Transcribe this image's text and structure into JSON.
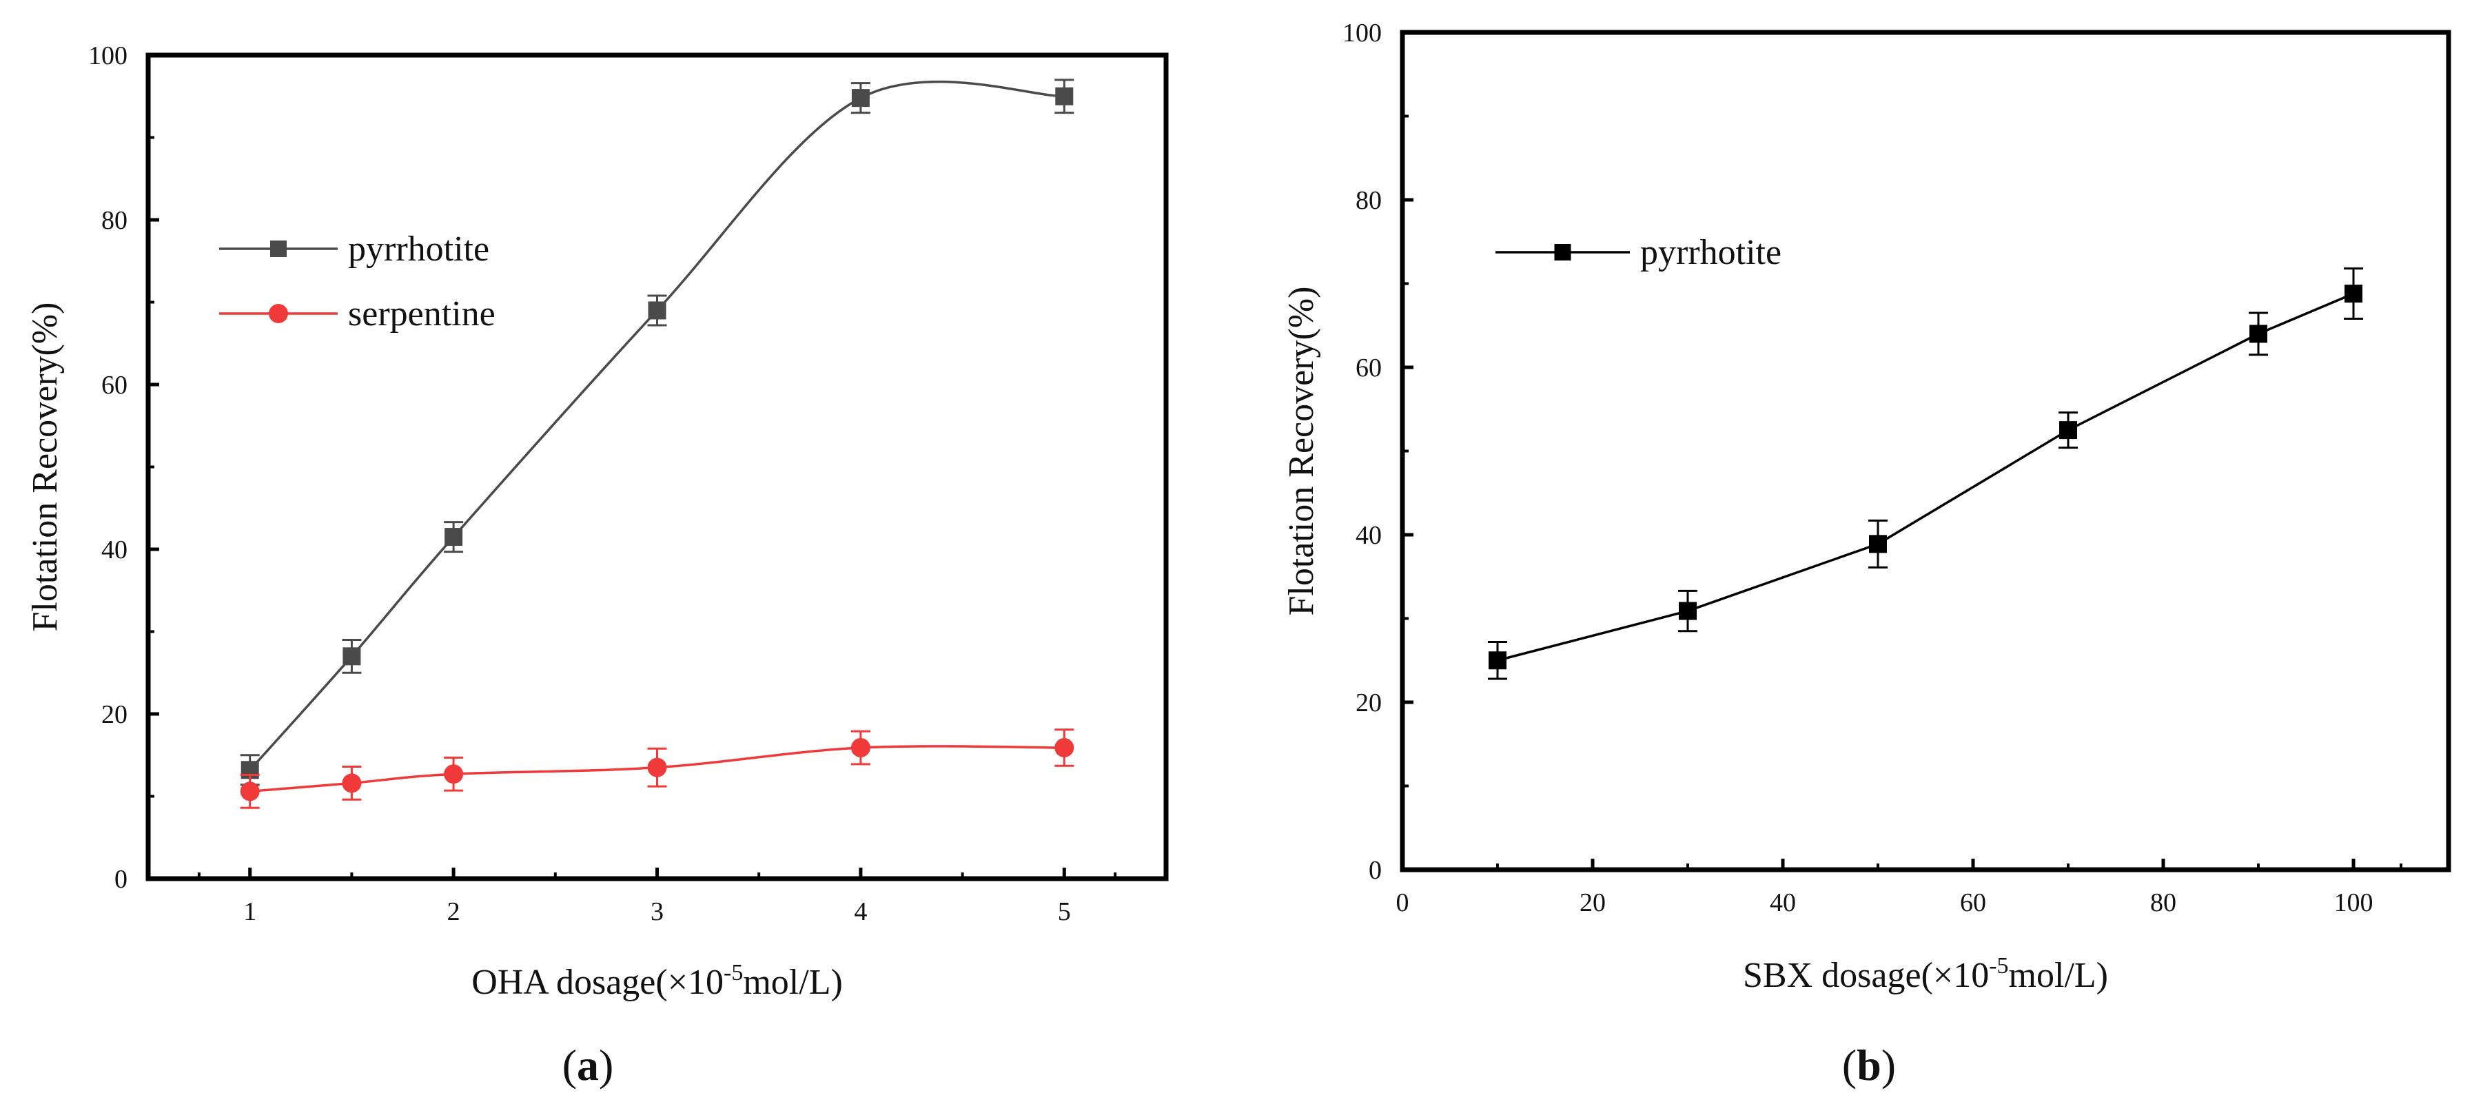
{
  "chart_data": [
    {
      "type": "line",
      "panel_label_open": "(",
      "panel_label_letter": "a",
      "panel_label_close": ")",
      "xlabel": "OHA dosage(×10",
      "xlabel_sup": "-5",
      "xlabel_tail": "mol/L)",
      "ylabel": "Flotation Recovery(%)",
      "xlim": [
        0.5,
        5.5
      ],
      "ylim": [
        0,
        100
      ],
      "xticks": [
        1,
        2,
        3,
        4,
        5
      ],
      "yticks": [
        0,
        20,
        40,
        60,
        80,
        100
      ],
      "grid": false,
      "legend_position": "upper-left",
      "x": [
        1,
        1.5,
        2,
        3,
        4,
        5
      ],
      "series": [
        {
          "name": "pyrrhotite",
          "marker": "square",
          "color": "#4a4a4a",
          "values": [
            13.2,
            27.0,
            41.5,
            69.0,
            94.8,
            95.0
          ],
          "errors": [
            1.8,
            2.0,
            1.8,
            1.8,
            1.8,
            2.0
          ],
          "smooth": true
        },
        {
          "name": "serpentine",
          "marker": "circle",
          "color": "#f03a3a",
          "values": [
            10.6,
            11.6,
            12.7,
            13.5,
            15.9,
            15.9
          ],
          "errors": [
            2.0,
            2.0,
            2.0,
            2.3,
            2.0,
            2.2
          ],
          "smooth": true
        }
      ]
    },
    {
      "type": "line",
      "panel_label_open": "(",
      "panel_label_letter": "b",
      "panel_label_close": ")",
      "xlabel": "SBX dosage(×10",
      "xlabel_sup": "-5",
      "xlabel_tail": "mol/L)",
      "ylabel": "Flotation Recovery(%)",
      "xlim": [
        0,
        110
      ],
      "ylim": [
        0,
        100
      ],
      "xticks": [
        0,
        20,
        40,
        60,
        80,
        100
      ],
      "yticks": [
        0,
        20,
        40,
        60,
        80,
        100
      ],
      "grid": false,
      "legend_position": "upper-left",
      "x": [
        10,
        30,
        50,
        70,
        90,
        100
      ],
      "series": [
        {
          "name": "pyrrhotite",
          "marker": "square",
          "color": "#000000",
          "values": [
            25.0,
            30.9,
            38.9,
            52.5,
            64.0,
            68.8
          ],
          "errors": [
            2.2,
            2.4,
            2.8,
            2.1,
            2.5,
            3.0
          ],
          "smooth": false
        }
      ]
    }
  ]
}
